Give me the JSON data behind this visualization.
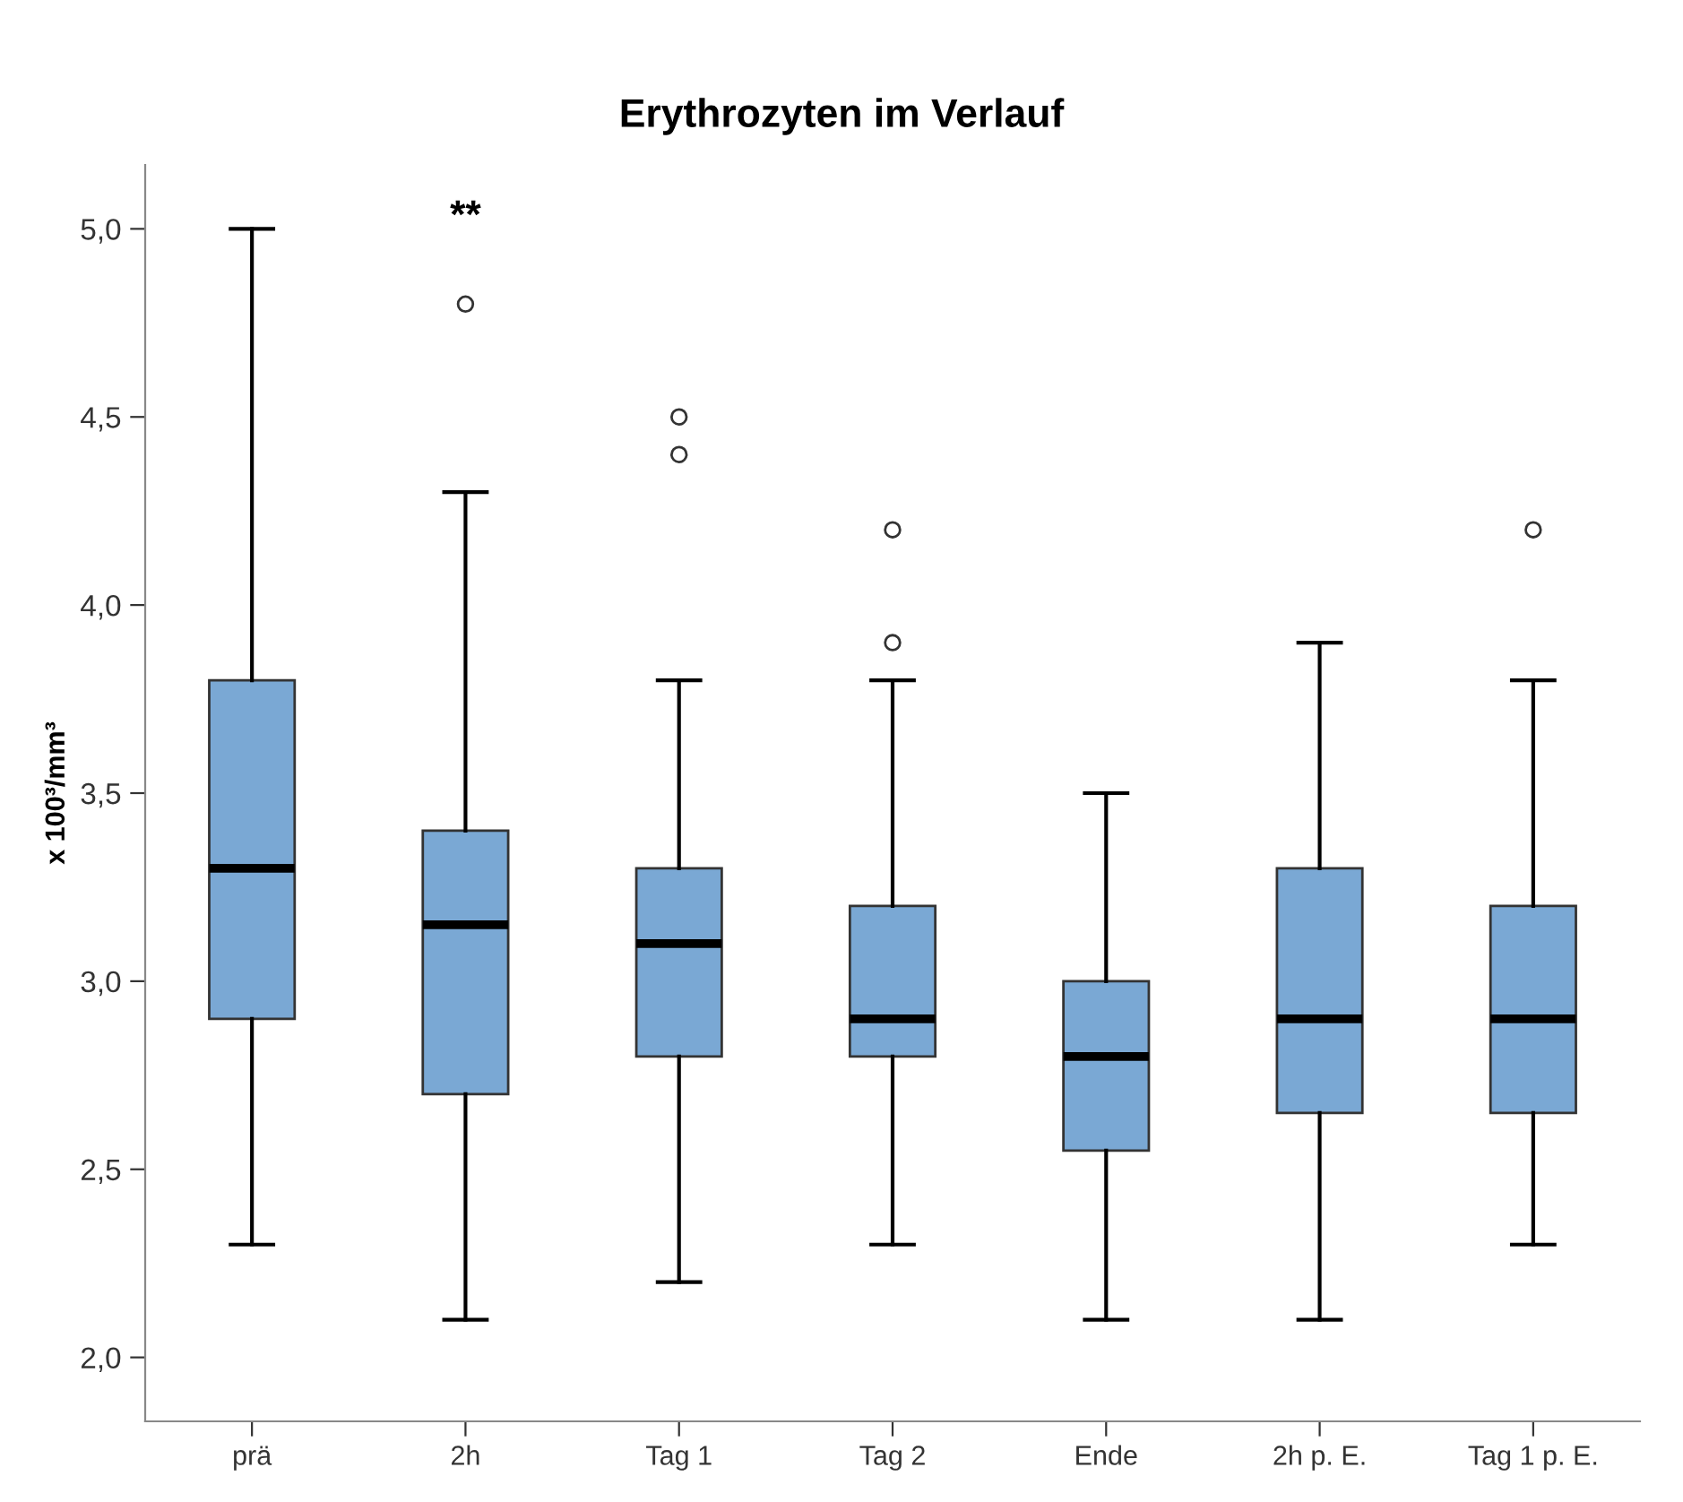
{
  "chart_data": {
    "type": "box",
    "title": "Erythrozyten im Verlauf",
    "ylabel": "x 100³/mm³",
    "categories": [
      "prä",
      "2h",
      "Tag 1",
      "Tag 2",
      "Ende",
      "2h p. E.",
      "Tag 1 p. E."
    ],
    "color": "#7aa8d4",
    "boxes": [
      {
        "low": 2.3,
        "q1": 2.9,
        "median": 3.3,
        "q3": 3.8,
        "high": 5.0
      },
      {
        "low": 2.1,
        "q1": 2.7,
        "median": 3.15,
        "q3": 3.4,
        "high": 4.3,
        "outliers": [
          4.8
        ]
      },
      {
        "low": 2.2,
        "q1": 2.8,
        "median": 3.1,
        "q3": 3.3,
        "high": 3.8,
        "outliers": [
          4.4,
          4.5
        ]
      },
      {
        "low": 2.3,
        "q1": 2.8,
        "median": 2.9,
        "q3": 3.2,
        "high": 3.8,
        "outliers": [
          3.9,
          4.2
        ]
      },
      {
        "low": 2.1,
        "q1": 2.55,
        "median": 2.8,
        "q3": 3.0,
        "high": 3.5
      },
      {
        "low": 2.1,
        "q1": 2.65,
        "median": 2.9,
        "q3": 3.3,
        "high": 3.9
      },
      {
        "low": 2.3,
        "q1": 2.65,
        "median": 2.9,
        "q3": 3.2,
        "high": 3.8,
        "outliers": [
          4.2
        ]
      }
    ],
    "ylim": [
      1.83,
      5.17
    ],
    "yticks": [
      {
        "value": 2.0,
        "label": "2,0"
      },
      {
        "value": 2.5,
        "label": "2,5"
      },
      {
        "value": 3.0,
        "label": "3,0"
      },
      {
        "value": 3.5,
        "label": "3,5"
      },
      {
        "value": 4.0,
        "label": "4,0"
      },
      {
        "value": 4.5,
        "label": "4,5"
      },
      {
        "value": 5.0,
        "label": "5,0"
      }
    ],
    "grid": false,
    "annotations": [
      "**"
    ]
  }
}
